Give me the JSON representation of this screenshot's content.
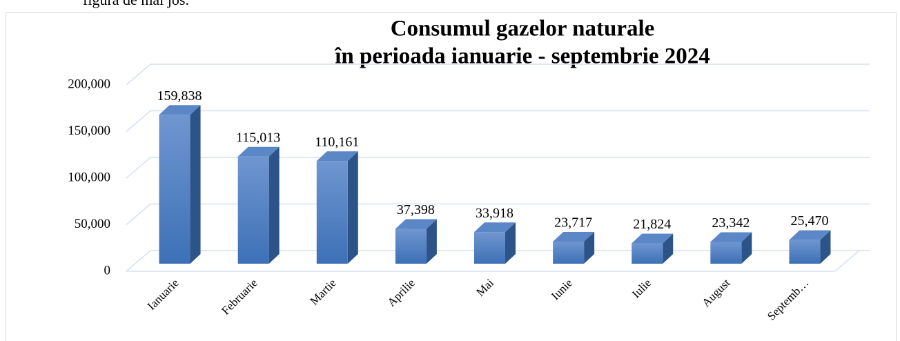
{
  "page_text": "figura de mai jos.",
  "chart_data": {
    "type": "bar3d",
    "title": "Consumul gazelor naturale",
    "subtitle": "în perioada ianuarie - septembrie 2024",
    "categories": [
      "Ianuarie",
      "Februarie",
      "Martie",
      "Aprilie",
      "Mai",
      "Iunie",
      "Iulie",
      "August",
      "Septemb…"
    ],
    "values": [
      159838,
      115013,
      110161,
      37398,
      33918,
      23717,
      21824,
      23342,
      25470
    ],
    "value_labels": [
      "159,838",
      "115,013",
      "110,161",
      "37,398",
      "33,918",
      "23,717",
      "21,824",
      "23,342",
      "25,470"
    ],
    "color": "#4a7ebb",
    "ylim": [
      0,
      200000
    ],
    "yticks": [
      0,
      {
        "value": 50000,
        "label": "50,000"
      },
      {
        "value": 100000,
        "label": "100,000"
      },
      {
        "value": 150000,
        "label": "150,000"
      },
      {
        "value": 200000,
        "label": "200,000"
      }
    ],
    "grid": true
  }
}
